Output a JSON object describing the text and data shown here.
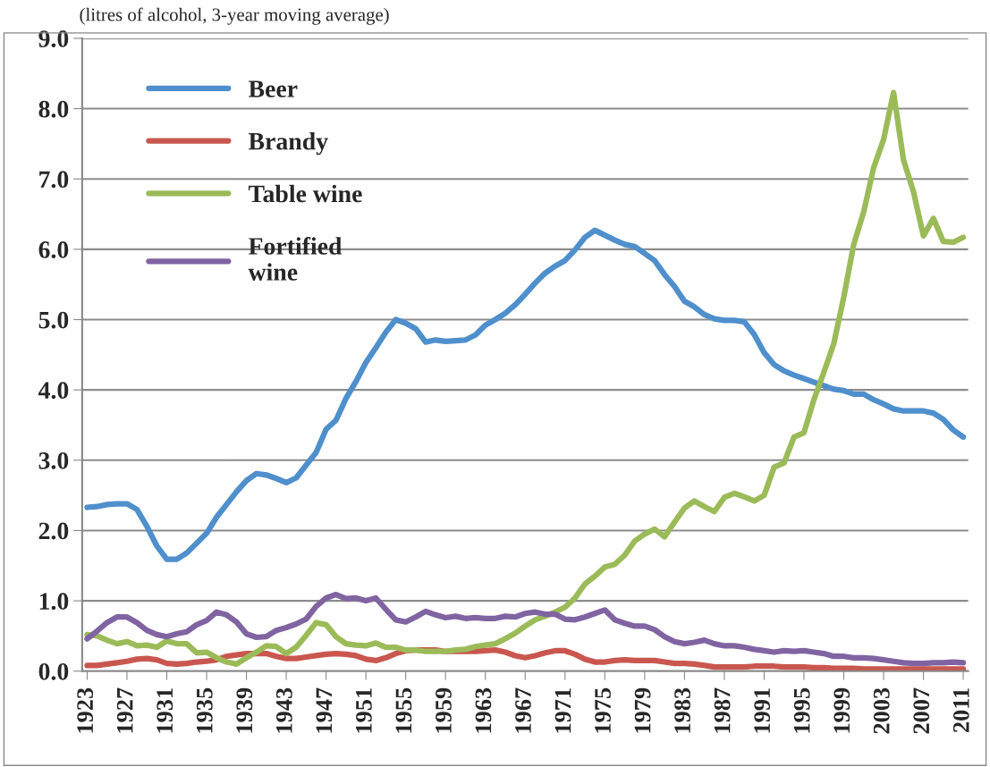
{
  "chart_data": {
    "type": "line",
    "subtitle": "(litres of alcohol, 3-year moving average)",
    "categories": [
      "1923",
      null,
      null,
      null,
      "1927",
      null,
      null,
      null,
      "1931",
      null,
      null,
      null,
      "1935",
      null,
      null,
      null,
      "1939",
      null,
      null,
      null,
      "1943",
      null,
      null,
      null,
      "1947",
      null,
      null,
      null,
      "1951",
      null,
      null,
      null,
      "1955",
      null,
      null,
      null,
      "1959",
      null,
      null,
      null,
      "1963",
      null,
      null,
      null,
      "1967",
      null,
      null,
      null,
      "1971",
      null,
      null,
      null,
      "1975",
      null,
      null,
      null,
      "1979",
      null,
      null,
      null,
      "1983",
      null,
      null,
      null,
      "1987",
      null,
      null,
      null,
      "1991",
      null,
      null,
      null,
      "1995",
      null,
      null,
      null,
      "1999",
      null,
      null,
      null,
      "2003",
      null,
      null,
      null,
      "2007",
      null,
      null,
      null,
      "2011"
    ],
    "series": [
      {
        "name": "Beer",
        "color": "#4f8fcc",
        "values": [
          2.33,
          2.34,
          2.37,
          2.38,
          2.38,
          2.3,
          2.06,
          1.78,
          1.59,
          1.59,
          1.68,
          1.82,
          1.96,
          2.19,
          2.37,
          2.55,
          2.71,
          2.81,
          2.79,
          2.74,
          2.68,
          2.75,
          2.93,
          3.11,
          3.44,
          3.57,
          3.88,
          4.12,
          4.39,
          4.6,
          4.82,
          5.0,
          4.95,
          4.87,
          4.68,
          4.71,
          4.69,
          4.7,
          4.71,
          4.78,
          4.92,
          5.0,
          5.09,
          5.21,
          5.36,
          5.52,
          5.66,
          5.76,
          5.84,
          5.99,
          6.17,
          6.27,
          6.2,
          6.13,
          6.07,
          6.04,
          5.94,
          5.84,
          5.64,
          5.47,
          5.26,
          5.18,
          5.07,
          5.01,
          4.99,
          4.99,
          4.97,
          4.79,
          4.53,
          4.36,
          4.27,
          4.21,
          4.16,
          4.11,
          4.06,
          4.01,
          3.99,
          3.94,
          3.94,
          3.86,
          3.8,
          3.73,
          3.7,
          3.7,
          3.7,
          3.67,
          3.58,
          3.43,
          3.33
        ]
      },
      {
        "name": "Brandy",
        "color": "#c9574f",
        "values": [
          0.08,
          0.08,
          0.1,
          0.12,
          0.14,
          0.17,
          0.18,
          0.16,
          0.11,
          0.1,
          0.11,
          0.13,
          0.14,
          0.16,
          0.21,
          0.23,
          0.25,
          0.25,
          0.25,
          0.21,
          0.18,
          0.18,
          0.2,
          0.22,
          0.24,
          0.25,
          0.24,
          0.22,
          0.17,
          0.15,
          0.19,
          0.25,
          0.29,
          0.3,
          0.3,
          0.3,
          0.28,
          0.28,
          0.28,
          0.28,
          0.29,
          0.3,
          0.27,
          0.22,
          0.19,
          0.22,
          0.26,
          0.29,
          0.29,
          0.24,
          0.17,
          0.13,
          0.13,
          0.15,
          0.16,
          0.15,
          0.15,
          0.15,
          0.13,
          0.11,
          0.11,
          0.1,
          0.08,
          0.06,
          0.06,
          0.06,
          0.06,
          0.07,
          0.07,
          0.07,
          0.06,
          0.06,
          0.06,
          0.05,
          0.05,
          0.04,
          0.04,
          0.04,
          0.03,
          0.03,
          0.03,
          0.03,
          0.03,
          0.03,
          0.03,
          0.03,
          0.03,
          0.03,
          0.03
        ]
      },
      {
        "name": "Table wine",
        "color": "#9bbb59",
        "values": [
          0.52,
          0.5,
          0.44,
          0.39,
          0.42,
          0.36,
          0.37,
          0.34,
          0.43,
          0.39,
          0.39,
          0.26,
          0.27,
          0.19,
          0.13,
          0.1,
          0.19,
          0.27,
          0.36,
          0.35,
          0.25,
          0.34,
          0.51,
          0.69,
          0.66,
          0.49,
          0.39,
          0.37,
          0.36,
          0.4,
          0.34,
          0.34,
          0.3,
          0.3,
          0.28,
          0.28,
          0.28,
          0.3,
          0.31,
          0.35,
          0.37,
          0.39,
          0.46,
          0.54,
          0.64,
          0.73,
          0.78,
          0.84,
          0.91,
          1.04,
          1.24,
          1.35,
          1.48,
          1.52,
          1.65,
          1.85,
          1.95,
          2.02,
          1.91,
          2.12,
          2.32,
          2.42,
          2.34,
          2.27,
          2.47,
          2.53,
          2.48,
          2.42,
          2.5,
          2.9,
          2.96,
          3.33,
          3.39,
          3.86,
          4.25,
          4.66,
          5.32,
          6.07,
          6.53,
          7.16,
          7.56,
          8.23,
          7.27,
          6.82,
          6.19,
          6.44,
          6.11,
          6.1,
          6.17
        ]
      },
      {
        "name": "Fortified\nwine",
        "color": "#8064a2",
        "values": [
          0.46,
          0.57,
          0.69,
          0.77,
          0.77,
          0.69,
          0.58,
          0.52,
          0.49,
          0.53,
          0.56,
          0.66,
          0.72,
          0.84,
          0.8,
          0.7,
          0.53,
          0.48,
          0.49,
          0.58,
          0.62,
          0.67,
          0.74,
          0.92,
          1.04,
          1.09,
          1.03,
          1.04,
          1.0,
          1.04,
          0.88,
          0.73,
          0.7,
          0.77,
          0.85,
          0.8,
          0.76,
          0.78,
          0.75,
          0.76,
          0.75,
          0.75,
          0.78,
          0.77,
          0.82,
          0.84,
          0.81,
          0.81,
          0.74,
          0.73,
          0.77,
          0.82,
          0.87,
          0.73,
          0.68,
          0.64,
          0.64,
          0.59,
          0.49,
          0.42,
          0.39,
          0.41,
          0.44,
          0.39,
          0.36,
          0.36,
          0.34,
          0.31,
          0.29,
          0.27,
          0.29,
          0.28,
          0.29,
          0.27,
          0.25,
          0.21,
          0.21,
          0.19,
          0.19,
          0.18,
          0.16,
          0.14,
          0.12,
          0.11,
          0.11,
          0.12,
          0.12,
          0.13,
          0.12
        ]
      }
    ],
    "ylim": [
      0,
      9
    ],
    "yticks": [
      {
        "value": 0,
        "label": "0.0"
      },
      {
        "value": 1,
        "label": "1.0"
      },
      {
        "value": 2,
        "label": "2.0"
      },
      {
        "value": 3,
        "label": "3.0"
      },
      {
        "value": 4,
        "label": "4.0"
      },
      {
        "value": 5,
        "label": "5.0"
      },
      {
        "value": 6,
        "label": "6.0"
      },
      {
        "value": 7,
        "label": "7.0"
      },
      {
        "value": 8,
        "label": "8.0"
      },
      {
        "value": 9,
        "label": "9.0"
      }
    ],
    "grid": "y",
    "legend": "top left",
    "marker": "none",
    "line_style": "solid"
  }
}
